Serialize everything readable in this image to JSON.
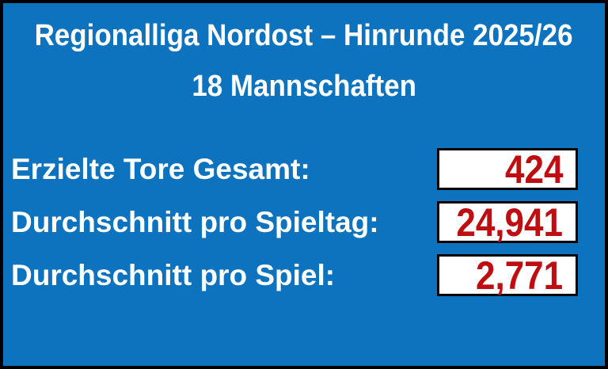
{
  "card": {
    "title": "Regionalliga Nordost – Hinrunde 2025/26",
    "subtitle": "18 Mannschaften",
    "stats": [
      {
        "label": "Erzielte Tore Gesamt:",
        "value": "424"
      },
      {
        "label": "Durchschnitt pro Spieltag:",
        "value": "24,941"
      },
      {
        "label": "Durchschnitt pro Spiel:",
        "value": "2,771"
      }
    ],
    "colors": {
      "background": "#0E73BE",
      "label_text": "#FFFFFF",
      "value_text": "#BE0E12",
      "box_background": "#FFFFFF",
      "border": "#000000"
    }
  },
  "chart_data": {
    "type": "table",
    "title": "Regionalliga Nordost – Hinrunde 2025/26",
    "subtitle": "18 Mannschaften",
    "teams": 18,
    "rows": [
      {
        "label": "Erzielte Tore Gesamt",
        "display": "424",
        "value": 424
      },
      {
        "label": "Durchschnitt pro Spieltag",
        "display": "24,941",
        "value": 24.941
      },
      {
        "label": "Durchschnitt pro Spiel",
        "display": "2,771",
        "value": 2.771
      }
    ]
  }
}
